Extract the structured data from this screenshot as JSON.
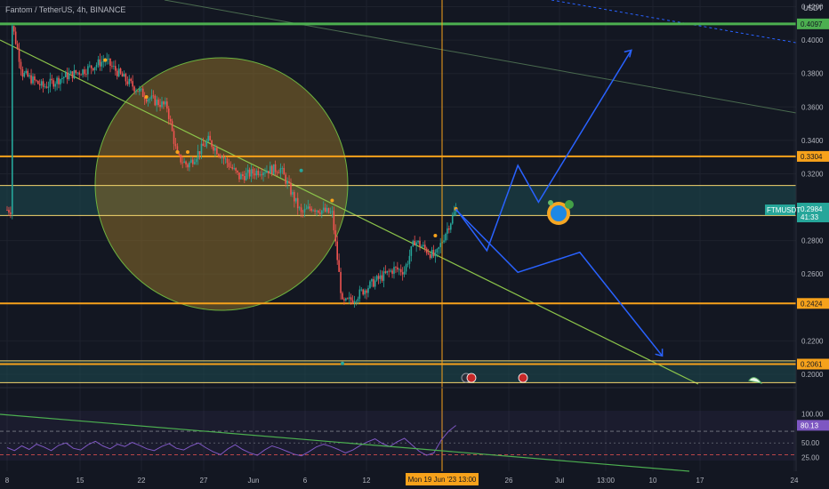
{
  "title": "Fantom / TetherUS, 4h, BINANCE",
  "price_axis_label": "USDT",
  "symbol_tag": "FTMUSDT",
  "countdown": "41:33",
  "crosshair_label": "Mon 19 Jun '23  13:00",
  "colors": {
    "background": "#131722",
    "grid": "#1e222d",
    "candle_up": "#26a69a",
    "candle_down": "#ef5350",
    "orange_level": "#f7a21b",
    "green_level": "#4caf50",
    "projection": "#2962ff",
    "rsi_line": "#7e57c2",
    "zone_fill": "#1e4d52",
    "circle_fill": "#8d6e2a"
  },
  "chart_data": [
    {
      "type": "candlestick",
      "title": "Fantom / TetherUS, 4h, BINANCE",
      "ylabel": "USDT",
      "y_scale": "linear",
      "ylim": [
        0.192,
        0.424
      ],
      "y_ticks": [
        "0.4200",
        "0.4000",
        "0.3800",
        "0.3600",
        "0.3400",
        "0.3200",
        "0.2800",
        "0.2600",
        "0.2200",
        "0.2000"
      ],
      "x_ticks": [
        "8",
        "15",
        "22",
        "27",
        "Jun",
        "6",
        "12",
        "26",
        "Jul",
        "13:00",
        "10",
        "17",
        "24"
      ],
      "last_price": 0.2984,
      "price_path": [
        {
          "x": "May 8",
          "y": 0.409
        },
        {
          "x": "May 9",
          "y": 0.38
        },
        {
          "x": "May 11",
          "y": 0.372
        },
        {
          "x": "May 13",
          "y": 0.378
        },
        {
          "x": "May 15",
          "y": 0.382
        },
        {
          "x": "May 17",
          "y": 0.388
        },
        {
          "x": "May 19",
          "y": 0.376
        },
        {
          "x": "May 21",
          "y": 0.366
        },
        {
          "x": "May 23",
          "y": 0.36
        },
        {
          "x": "May 24",
          "y": 0.33
        },
        {
          "x": "May 25",
          "y": 0.325
        },
        {
          "x": "May 27",
          "y": 0.34
        },
        {
          "x": "May 28",
          "y": 0.333
        },
        {
          "x": "May 30",
          "y": 0.318
        },
        {
          "x": "Jun 1",
          "y": 0.322
        },
        {
          "x": "Jun 3",
          "y": 0.323
        },
        {
          "x": "Jun 5",
          "y": 0.296
        },
        {
          "x": "Jun 6",
          "y": 0.3
        },
        {
          "x": "Jun 8",
          "y": 0.296
        },
        {
          "x": "Jun 9",
          "y": 0.242
        },
        {
          "x": "Jun 10",
          "y": 0.245
        },
        {
          "x": "Jun 12",
          "y": 0.255
        },
        {
          "x": "Jun 14",
          "y": 0.263
        },
        {
          "x": "Jun 15",
          "y": 0.262
        },
        {
          "x": "Jun 16",
          "y": 0.28
        },
        {
          "x": "Jun 18",
          "y": 0.27
        },
        {
          "x": "Jun 19",
          "y": 0.285
        },
        {
          "x": "Jun 20",
          "y": 0.2984
        }
      ],
      "horizontal_levels": [
        {
          "label": "0.4097",
          "value": 0.4097,
          "color": "green"
        },
        {
          "label": "0.3304",
          "value": 0.3304,
          "color": "orange"
        },
        {
          "label": "0.2424",
          "value": 0.2424,
          "color": "orange"
        },
        {
          "label": "0.2061",
          "value": 0.2061,
          "color": "orange"
        }
      ],
      "zones": [
        {
          "from": 0.295,
          "to": 0.313
        },
        {
          "from": 0.195,
          "to": 0.208
        }
      ],
      "projection_path": [
        {
          "x": "Jun 20",
          "y": 0.299
        },
        {
          "x": "Jun 23",
          "y": 0.274
        },
        {
          "x": "Jun 26",
          "y": 0.325
        },
        {
          "x": "Jun 28",
          "y": 0.303
        },
        {
          "x": "Jul 7",
          "y": 0.394
        }
      ],
      "projection_path_alt": [
        {
          "x": "Jun 20",
          "y": 0.2985
        },
        {
          "x": "Jun 26",
          "y": 0.261
        },
        {
          "x": "Jul 2",
          "y": 0.273
        },
        {
          "x": "Jul 10",
          "y": 0.211
        }
      ]
    },
    {
      "type": "line",
      "title": "",
      "ylabel": "",
      "ylim": [
        20,
        105
      ],
      "y_ticks": [
        "100.00",
        "50.00",
        "25.00"
      ],
      "current_value_label": "80.13",
      "series": [
        {
          "values": [
            42,
            37,
            45,
            39,
            48,
            43,
            37,
            46,
            50,
            41,
            38,
            47,
            53,
            45,
            40,
            48,
            44,
            51,
            46,
            40,
            37,
            44,
            49,
            41,
            38,
            45,
            50,
            42,
            35,
            30,
            40,
            47,
            39,
            33,
            29,
            38,
            45,
            41,
            36,
            31,
            28,
            35,
            43,
            48,
            44,
            39,
            33,
            38,
            46,
            52,
            57,
            49,
            44,
            52,
            58,
            47,
            36,
            29,
            33,
            55,
            70,
            80
          ]
        }
      ]
    }
  ]
}
